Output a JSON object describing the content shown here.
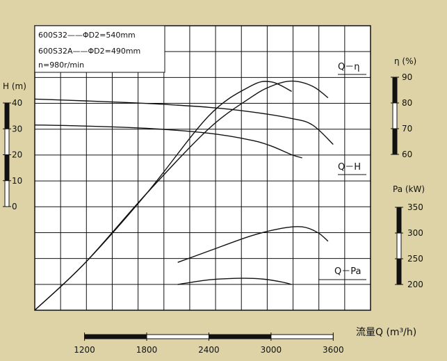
{
  "colors": {
    "background": "#ddd3a6",
    "plot_background": "#ffffff",
    "ink": "#111111"
  },
  "chart_data": {
    "type": "line",
    "title": "",
    "legend": {
      "lines": [
        "600S32——ΦD2=540mm",
        "600S32A——ΦD2=490mm",
        "n=980r/min"
      ]
    },
    "xlabel": "流量Q (m³/h)",
    "x_ticks": [
      "1200",
      "1800",
      "2400",
      "3000",
      "3600"
    ],
    "xlim": [
      720,
      3960
    ],
    "y_axes": {
      "head": {
        "label": "H (m)",
        "ticks": [
          "40",
          "30",
          "20",
          "10",
          "0"
        ],
        "range": [
          0,
          40
        ]
      },
      "efficiency": {
        "label": "η (%)",
        "ticks": [
          "90",
          "80",
          "70",
          "60"
        ],
        "range": [
          60,
          90
        ]
      },
      "power": {
        "label": "Pa (kW)",
        "ticks": [
          "350",
          "300",
          "250",
          "200"
        ],
        "range": [
          200,
          350
        ]
      }
    },
    "curve_labels": [
      "Q－η",
      "Q－H",
      "Q－Pa"
    ],
    "series": [
      {
        "axis": "head",
        "x": [
          720,
          1200,
          1800,
          2400,
          2800,
          3200,
          3400,
          3600
        ],
        "y": [
          41.5,
          40.8,
          39.8,
          38.3,
          36.6,
          34.0,
          31.5,
          24.0
        ]
      },
      {
        "axis": "head",
        "x": [
          720,
          1200,
          1800,
          2400,
          2800,
          3000,
          3200,
          3300
        ],
        "y": [
          31.5,
          31.1,
          30.2,
          28.3,
          25.7,
          23.4,
          20.0,
          18.8
        ]
      },
      {
        "axis": "efficiency",
        "x": [
          720,
          1200,
          1800,
          2400,
          2800,
          3000,
          3200,
          3400,
          3550
        ],
        "y": [
          0,
          18,
          45,
          70,
          82,
          86.5,
          88.5,
          86.5,
          82.0
        ]
      },
      {
        "axis": "efficiency",
        "x": [
          720,
          1200,
          1800,
          2400,
          2800,
          3000,
          3200
        ],
        "y": [
          0,
          18,
          45,
          75,
          86.5,
          88.2,
          84.5
        ]
      },
      {
        "axis": "power",
        "x": [
          2100,
          2400,
          2800,
          3100,
          3300,
          3450,
          3550
        ],
        "y": [
          243,
          265,
          294,
          309,
          312,
          301,
          284
        ]
      },
      {
        "axis": "power",
        "x": [
          2100,
          2400,
          2700,
          2900,
          3100,
          3200
        ],
        "y": [
          200,
          209,
          212,
          211,
          205,
          200
        ]
      }
    ],
    "grid": true
  }
}
